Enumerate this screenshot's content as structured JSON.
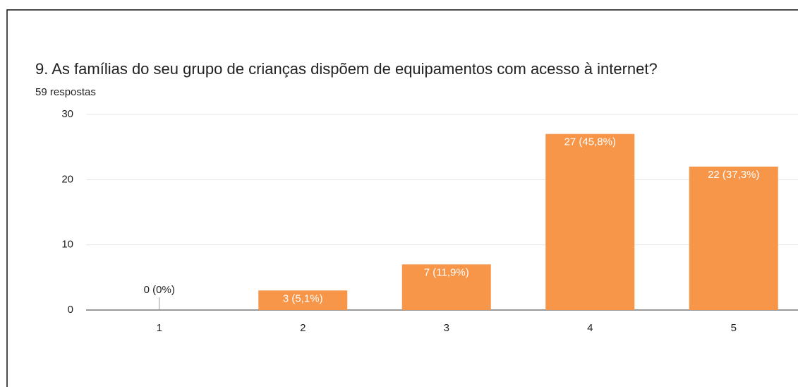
{
  "chart_data": {
    "type": "bar",
    "title": "9. As famílias do seu grupo de crianças dispõem de equipamentos com acesso à internet?",
    "subtitle": "59 respostas",
    "categories": [
      "1",
      "2",
      "3",
      "4",
      "5"
    ],
    "values": [
      0,
      3,
      7,
      27,
      22
    ],
    "value_labels": [
      "0 (0%)",
      "3 (5,1%)",
      "7 (11,9%)",
      "27 (45,8%)",
      "22 (37,3%)"
    ],
    "color": "#f79548",
    "ylim": [
      0,
      30
    ],
    "yticks": [
      0,
      10,
      20,
      30
    ],
    "grid": true
  }
}
